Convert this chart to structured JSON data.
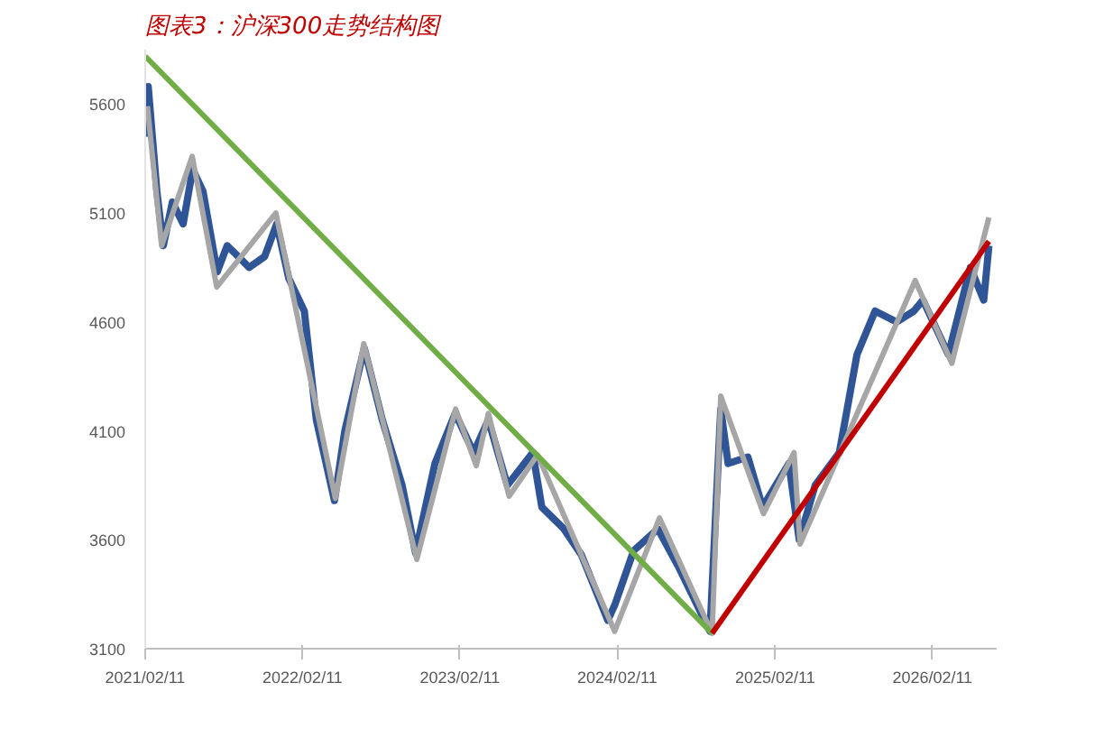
{
  "chart_data": {
    "type": "line",
    "title": "图表3：沪深300走势结构图",
    "xlim": [
      "2021-02-11",
      "2026-07-10"
    ],
    "xticks": [
      {
        "value": "2021-02-11",
        "label": "2021/02/11"
      },
      {
        "value": "2022-02-11",
        "label": "2022/02/11"
      },
      {
        "value": "2023-02-11",
        "label": "2023/02/11"
      },
      {
        "value": "2024-02-11",
        "label": "2024/02/11"
      },
      {
        "value": "2025-02-11",
        "label": "2025/02/11"
      },
      {
        "value": "2026-02-11",
        "label": "2026/02/11"
      }
    ],
    "ylim": [
      3100,
      5850
    ],
    "yticks": [
      3100,
      3600,
      4100,
      4600,
      5100,
      5600
    ],
    "grid": false,
    "series": [
      {
        "color": "#2f5597",
        "x": [
          "2021-02-11",
          "2021-02-18",
          "2021-03-10",
          "2021-03-25",
          "2021-04-15",
          "2021-05-10",
          "2021-06-01",
          "2021-06-25",
          "2021-07-28",
          "2021-08-20",
          "2021-09-15",
          "2021-10-10",
          "2021-11-15",
          "2021-12-13",
          "2022-01-10",
          "2022-02-15",
          "2022-03-15",
          "2022-04-26",
          "2022-05-20",
          "2022-07-04",
          "2022-08-15",
          "2022-09-30",
          "2022-10-31",
          "2022-12-15",
          "2023-01-31",
          "2023-03-15",
          "2023-04-18",
          "2023-06-01",
          "2023-07-30",
          "2023-08-20",
          "2023-10-10",
          "2023-11-20",
          "2024-01-20",
          "2024-02-05",
          "2024-03-20",
          "2024-05-15",
          "2024-07-01",
          "2024-09-13",
          "2024-10-08",
          "2024-10-25",
          "2024-12-10",
          "2025-01-13",
          "2025-03-15",
          "2025-04-08",
          "2025-05-15",
          "2025-07-10",
          "2025-08-20",
          "2025-10-01",
          "2025-11-20",
          "2025-12-30",
          "2026-01-20",
          "2026-03-20",
          "2026-05-10",
          "2026-06-10",
          "2026-06-22"
        ],
        "values": [
          5450,
          5680,
          5200,
          4950,
          5150,
          5050,
          5300,
          5200,
          4830,
          4950,
          4900,
          4850,
          4900,
          5050,
          4800,
          4650,
          4150,
          3780,
          4100,
          4480,
          4150,
          3850,
          3540,
          3950,
          4180,
          4000,
          4150,
          3850,
          4000,
          3750,
          3650,
          3530,
          3230,
          3300,
          3550,
          3650,
          3480,
          3180,
          4200,
          3950,
          3980,
          3750,
          3950,
          3600,
          3850,
          4000,
          4450,
          4650,
          4600,
          4650,
          4700,
          4450,
          4850,
          4700,
          4950
        ]
      },
      {
        "color": "#a6a6a6",
        "x": [
          "2021-02-16",
          "2021-03-21",
          "2021-05-31",
          "2021-07-27",
          "2021-12-11",
          "2022-04-28",
          "2022-07-03",
          "2022-11-03",
          "2023-02-01",
          "2023-03-21",
          "2023-04-18",
          "2023-06-05",
          "2023-08-10",
          "2024-02-05",
          "2024-05-19",
          "2024-09-18",
          "2024-10-08",
          "2025-01-15",
          "2025-03-27",
          "2025-04-10",
          "2026-01-02",
          "2026-03-28",
          "2026-06-22"
        ],
        "values": [
          5590,
          4950,
          5360,
          4760,
          5100,
          3790,
          4500,
          3510,
          4200,
          3940,
          4180,
          3800,
          3990,
          3180,
          3700,
          3170,
          4260,
          3720,
          4000,
          3580,
          4790,
          4410,
          5080
        ]
      },
      {
        "color": "#70ad47",
        "x": [
          "2021-02-11",
          "2024-09-18"
        ],
        "values": [
          5820,
          3170
        ]
      },
      {
        "color": "#c00000",
        "x": [
          "2024-09-18",
          "2026-06-22"
        ],
        "values": [
          3170,
          4970
        ]
      }
    ]
  }
}
